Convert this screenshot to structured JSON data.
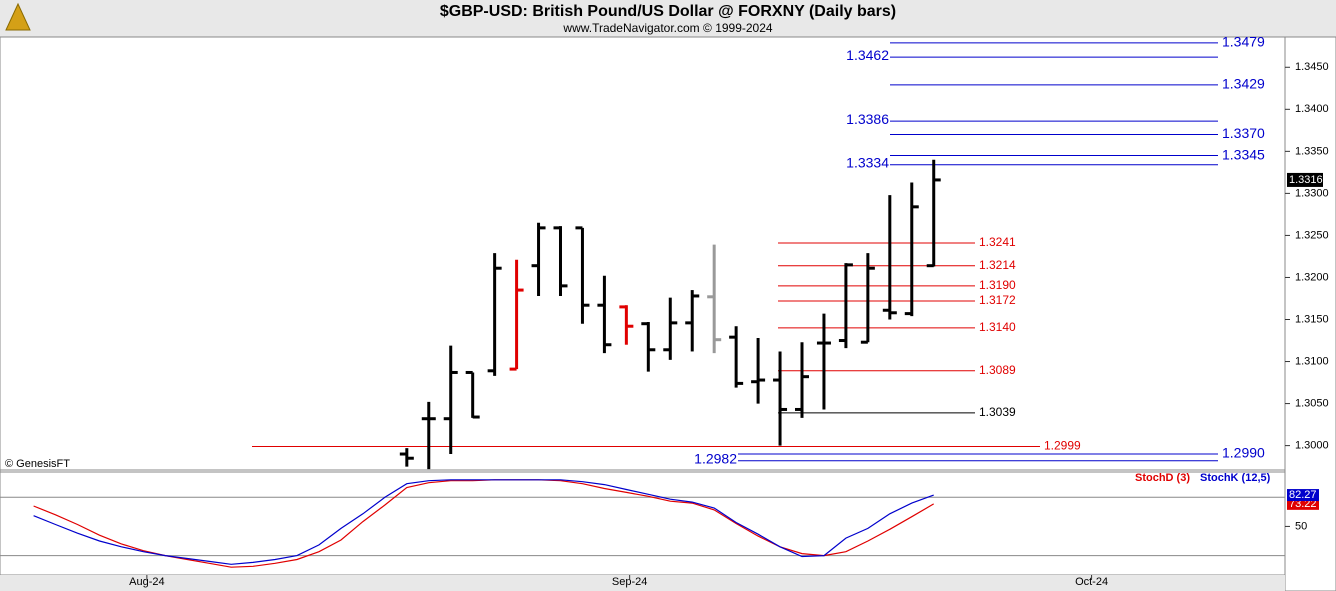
{
  "watermark": "© GenesisFT",
  "chart_data": [
    {
      "type": "ohlc",
      "title": "$GBP-USD:  British Pound/US Dollar @ FORXNY  (Daily bars)",
      "subtitle": "www.TradeNavigator.com © 1999-2024",
      "x": [
        0,
        1,
        2,
        3,
        4,
        5,
        6,
        7,
        8,
        9,
        10,
        11,
        12,
        13,
        14,
        15,
        16,
        17,
        18,
        19,
        20,
        21,
        22,
        23,
        24
      ],
      "open": [
        1.299,
        1.3032,
        1.3032,
        1.3087,
        1.3089,
        1.3091,
        1.3214,
        1.3259,
        1.3259,
        1.3167,
        1.3165,
        1.3145,
        1.3114,
        1.3146,
        1.3177,
        1.3129,
        1.3076,
        1.3078,
        1.3043,
        1.3122,
        1.3125,
        1.3123,
        1.3161,
        1.3157,
        1.3214
      ],
      "high": [
        1.2997,
        1.3052,
        1.3119,
        1.3087,
        1.3229,
        1.3221,
        1.3265,
        1.3261,
        1.3259,
        1.3202,
        1.3167,
        1.3147,
        1.3176,
        1.3185,
        1.3239,
        1.3142,
        1.3128,
        1.3112,
        1.3123,
        1.3157,
        1.3217,
        1.3229,
        1.3298,
        1.3313,
        1.334
      ],
      "low": [
        1.2975,
        1.2972,
        1.299,
        1.3033,
        1.3083,
        1.3091,
        1.3178,
        1.3178,
        1.3145,
        1.311,
        1.312,
        1.3088,
        1.3102,
        1.3112,
        1.311,
        1.3069,
        1.305,
        1.3,
        1.3033,
        1.3043,
        1.3116,
        1.3123,
        1.315,
        1.3154,
        1.3213
      ],
      "close": [
        1.2985,
        1.3032,
        1.3087,
        1.3034,
        1.3211,
        1.3185,
        1.3259,
        1.319,
        1.3167,
        1.312,
        1.3142,
        1.3114,
        1.3146,
        1.3178,
        1.3126,
        1.3074,
        1.3078,
        1.3043,
        1.3082,
        1.3122,
        1.3215,
        1.3211,
        1.3158,
        1.3284,
        1.3316
      ],
      "bar_colors": [
        "#000000",
        "#000000",
        "#000000",
        "#000000",
        "#000000",
        "#e00000",
        "#000000",
        "#000000",
        "#000000",
        "#000000",
        "#e00000",
        "#000000",
        "#000000",
        "#000000",
        "#999999",
        "#000000",
        "#000000",
        "#000000",
        "#000000",
        "#000000",
        "#000000",
        "#000000",
        "#000000",
        "#000000",
        "#000000"
      ],
      "xlim": [
        -18.53,
        40.0
      ],
      "ylim": [
        1.2971,
        1.3486
      ],
      "yticks": [
        {
          "value": 1.3,
          "label": "1.3000"
        },
        {
          "value": 1.305,
          "label": "1.3050"
        },
        {
          "value": 1.31,
          "label": "1.3100"
        },
        {
          "value": 1.315,
          "label": "1.3150"
        },
        {
          "value": 1.32,
          "label": "1.3200"
        },
        {
          "value": 1.325,
          "label": "1.3250"
        },
        {
          "value": 1.33,
          "label": "1.3300"
        },
        {
          "value": 1.335,
          "label": "1.3350"
        },
        {
          "value": 1.34,
          "label": "1.3400"
        },
        {
          "value": 1.345,
          "label": "1.3450"
        }
      ],
      "levels": [
        {
          "value": 1.3479,
          "label": "1.3479",
          "color": "#0000cc"
        },
        {
          "value": 1.3462,
          "label": "1.3462",
          "color": "#0000cc"
        },
        {
          "value": 1.3429,
          "label": "1.3429",
          "color": "#0000cc"
        },
        {
          "value": 1.3386,
          "label": "1.3386",
          "color": "#0000cc"
        },
        {
          "value": 1.337,
          "label": "1.3370",
          "color": "#0000cc"
        },
        {
          "value": 1.3345,
          "label": "1.3345",
          "color": "#0000cc"
        },
        {
          "value": 1.3334,
          "label": "1.3334",
          "color": "#0000cc"
        },
        {
          "value": 1.3241,
          "label": "1.3241",
          "color": "#e00000"
        },
        {
          "value": 1.3214,
          "label": "1.3214",
          "color": "#e00000"
        },
        {
          "value": 1.319,
          "label": "1.3190",
          "color": "#e00000"
        },
        {
          "value": 1.3172,
          "label": "1.3172",
          "color": "#e00000"
        },
        {
          "value": 1.314,
          "label": "1.3140",
          "color": "#e00000"
        },
        {
          "value": 1.3089,
          "label": "1.3089",
          "color": "#e00000"
        },
        {
          "value": 1.3039,
          "label": "1.3039",
          "color": "#000000"
        },
        {
          "value": 1.2999,
          "label": "1.2999",
          "color": "#e00000"
        },
        {
          "value": 1.299,
          "label": "1.2990",
          "color": "#0000cc"
        },
        {
          "value": 1.2982,
          "label": "1.2982",
          "color": "#0000cc"
        }
      ]
    },
    {
      "type": "line",
      "x": [
        -17,
        -16,
        -15,
        -14,
        -13,
        -12,
        -11,
        -10,
        -9,
        -8,
        -7,
        -6,
        -5,
        -4,
        -3,
        -2,
        -1,
        0,
        1,
        2,
        3,
        4,
        5,
        6,
        7,
        8,
        9,
        10,
        11,
        12,
        13,
        14,
        15,
        16,
        17,
        18,
        19,
        20,
        21,
        22,
        23,
        24
      ],
      "series": [
        {
          "name": "StochD (3)",
          "color": "#e00000",
          "values": [
            71,
            62,
            52,
            41,
            32,
            25,
            20,
            16,
            12,
            8,
            9,
            12,
            16,
            24,
            36,
            55,
            72,
            90,
            95,
            97,
            97,
            98,
            98,
            98,
            97,
            94,
            89,
            85,
            81,
            76,
            74,
            67,
            53,
            40,
            29,
            22,
            20,
            24,
            35,
            47,
            60,
            73.22
          ]
        },
        {
          "name": "StochK (12,5)",
          "color": "#0000cc",
          "values": [
            61,
            52,
            43,
            35,
            29,
            24,
            20,
            17,
            14,
            11,
            13,
            16,
            20,
            31,
            48,
            63,
            80,
            94,
            97,
            98,
            98,
            98,
            98,
            98,
            98,
            96,
            93,
            88,
            83,
            78,
            75,
            69,
            54,
            42,
            29,
            19,
            20,
            38,
            48,
            63,
            74,
            82.27
          ]
        }
      ],
      "xlim": [
        -18.53,
        40.0
      ],
      "xticks": [
        {
          "value": -11.84,
          "label": "Aug-24"
        },
        {
          "value": 10.15,
          "label": "Sep-24"
        },
        {
          "value": 31.19,
          "label": "Oct-24"
        }
      ],
      "ylim": [
        0,
        106
      ],
      "yticks": [
        50
      ],
      "hlines": [
        20,
        80
      ]
    }
  ]
}
